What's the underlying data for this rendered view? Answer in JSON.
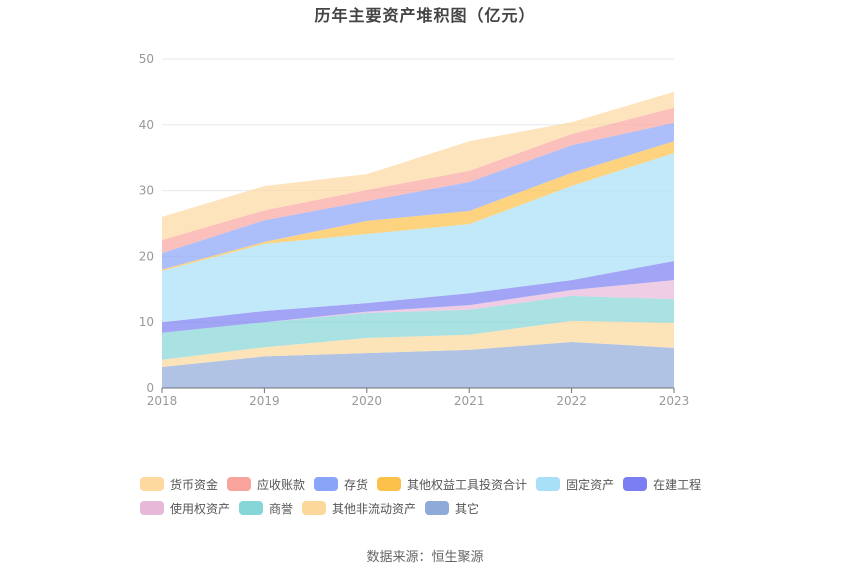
{
  "chart_data": {
    "type": "area",
    "stacked": true,
    "title": "历年主要资产堆积图（亿元）",
    "xlabel": "",
    "ylabel": "",
    "x": [
      "2018",
      "2019",
      "2020",
      "2021",
      "2022",
      "2023"
    ],
    "ylim": [
      0,
      50
    ],
    "yticks": [
      0,
      10,
      20,
      30,
      40,
      50
    ],
    "grid": true,
    "legend_position": "bottom",
    "series": [
      {
        "name": "其它",
        "color": "#8eaad8",
        "values": [
          3.2,
          4.8,
          5.3,
          5.8,
          7.0,
          6.1
        ]
      },
      {
        "name": "其他非流动资产",
        "color": "#fcd89a",
        "values": [
          1.1,
          1.4,
          2.3,
          2.3,
          3.2,
          3.8
        ]
      },
      {
        "name": "商誉",
        "color": "#86d6d7",
        "values": [
          4.1,
          3.8,
          3.8,
          3.8,
          3.8,
          3.6
        ]
      },
      {
        "name": "使用权资产",
        "color": "#e8b8d8",
        "values": [
          0.0,
          0.0,
          0.2,
          0.7,
          0.9,
          2.9
        ]
      },
      {
        "name": "在建工程",
        "color": "#7b7ef2",
        "values": [
          1.6,
          1.7,
          1.3,
          1.8,
          1.5,
          2.9
        ]
      },
      {
        "name": "固定资产",
        "color": "#a8e0f8",
        "values": [
          7.8,
          10.2,
          10.5,
          10.5,
          14.3,
          16.4
        ]
      },
      {
        "name": "其他权益工具投资合计",
        "color": "#fcc14a",
        "values": [
          0.2,
          0.3,
          2.0,
          2.0,
          2.0,
          1.8
        ]
      },
      {
        "name": "存货",
        "color": "#8aa4f8",
        "values": [
          2.5,
          3.3,
          3.0,
          4.4,
          4.2,
          2.8
        ]
      },
      {
        "name": "应收账款",
        "color": "#f9a59e",
        "values": [
          2.0,
          1.5,
          1.7,
          1.7,
          1.7,
          2.3
        ]
      },
      {
        "name": "货币资金",
        "color": "#fdd9a0",
        "values": [
          3.5,
          3.7,
          2.4,
          4.5,
          1.8,
          2.4
        ]
      }
    ]
  },
  "legend": {
    "row1": [
      {
        "name": "货币资金",
        "color": "#fdd9a0"
      },
      {
        "name": "应收账款",
        "color": "#f9a59e"
      },
      {
        "name": "存货",
        "color": "#8aa4f8"
      },
      {
        "name": "其他权益工具投资合计",
        "color": "#fcc14a"
      },
      {
        "name": "固定资产",
        "color": "#a8e0f8"
      },
      {
        "name": "在建工程",
        "color": "#7b7ef2"
      }
    ],
    "row2": [
      {
        "name": "使用权资产",
        "color": "#e8b8d8"
      },
      {
        "name": "商誉",
        "color": "#86d6d7"
      },
      {
        "name": "其他非流动资产",
        "color": "#fcd89a"
      },
      {
        "name": "其它",
        "color": "#8eaad8"
      }
    ]
  },
  "source": "数据来源：恒生聚源"
}
